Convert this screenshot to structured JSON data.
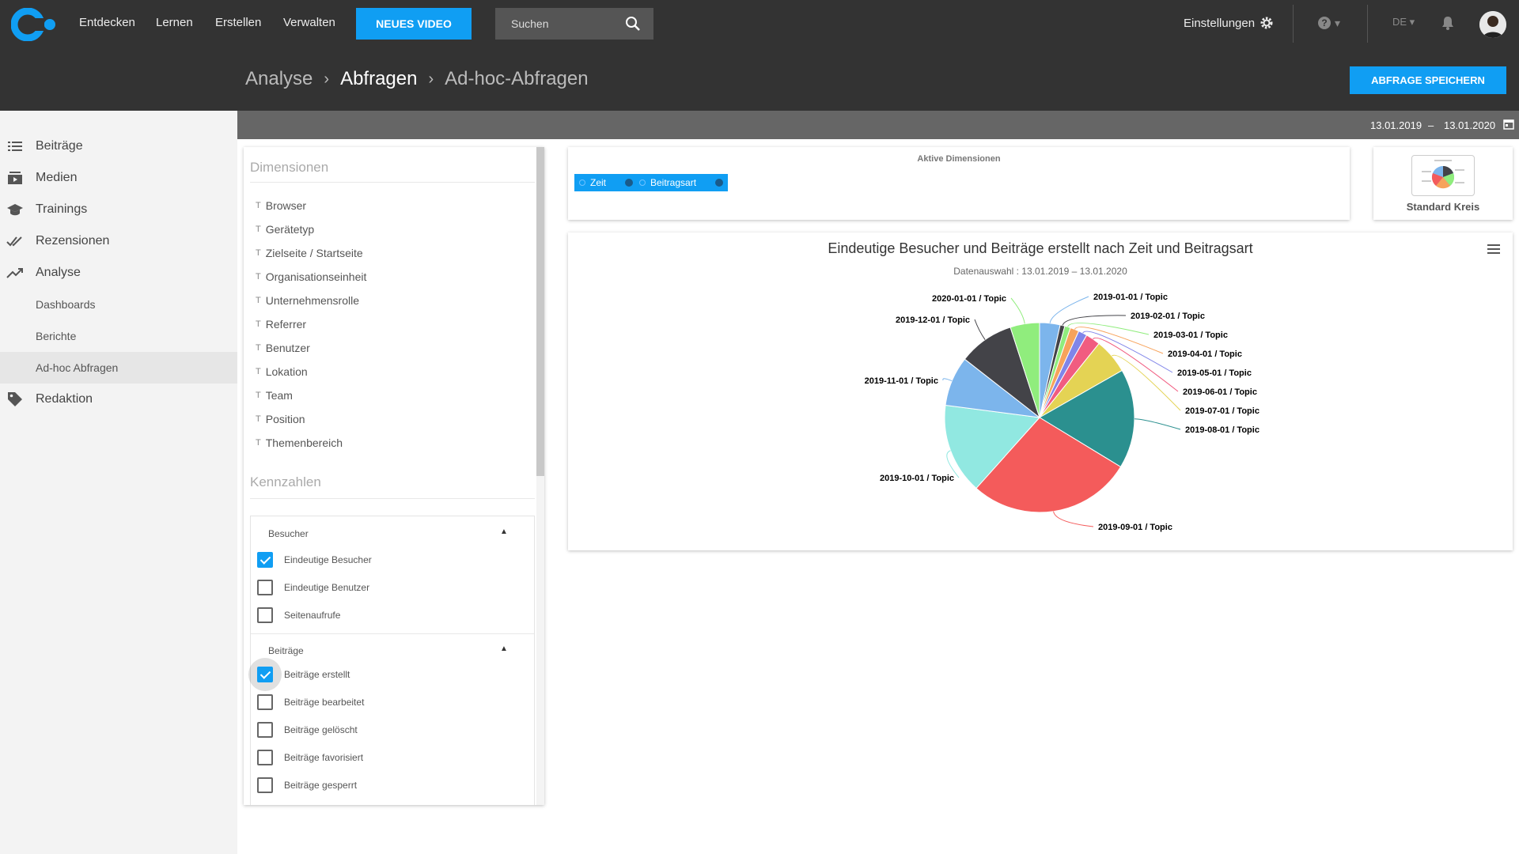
{
  "topbar": {
    "nav": [
      "Entdecken",
      "Lernen",
      "Erstellen",
      "Verwalten"
    ],
    "new_video": "NEUES VIDEO",
    "search_placeholder": "Suchen",
    "settings": "Einstellungen",
    "lang": "DE ▾"
  },
  "breadcrumb": [
    "Analyse",
    "Abfragen",
    "Ad-hoc-Abfragen"
  ],
  "save_button": "ABFRAGE SPEICHERN",
  "sidebar": {
    "items": [
      "Beiträge",
      "Medien",
      "Trainings",
      "Rezensionen",
      "Analyse"
    ],
    "sub": [
      "Dashboards",
      "Berichte",
      "Ad-hoc Abfragen"
    ],
    "last": "Redaktion"
  },
  "daterange": {
    "from": "13.01.2019",
    "sep": "–",
    "to": "13.01.2020"
  },
  "dimensions": {
    "title": "Dimensionen",
    "items": [
      "Browser",
      "Gerätetyp",
      "Zielseite / Startseite",
      "Organisationseinheit",
      "Unternehmensrolle",
      "Referrer",
      "Benutzer",
      "Lokation",
      "Team",
      "Position",
      "Themenbereich"
    ]
  },
  "kennzahlen": {
    "title": "Kennzahlen",
    "groups": [
      {
        "label": "Besucher",
        "items": [
          {
            "label": "Eindeutige Besucher",
            "checked": true
          },
          {
            "label": "Eindeutige Benutzer",
            "checked": false
          },
          {
            "label": "Seitenaufrufe",
            "checked": false
          }
        ]
      },
      {
        "label": "Beiträge",
        "items": [
          {
            "label": "Beiträge erstellt",
            "checked": true
          },
          {
            "label": "Beiträge bearbeitet",
            "checked": false
          },
          {
            "label": "Beiträge gelöscht",
            "checked": false
          },
          {
            "label": "Beiträge favorisiert",
            "checked": false
          },
          {
            "label": "Beiträge gesperrt",
            "checked": false
          }
        ]
      }
    ]
  },
  "active_dims": {
    "title": "Aktive Dimensionen",
    "chips": [
      "Zeit",
      "Beitragsart"
    ]
  },
  "chart_type": {
    "label": "Standard Kreis"
  },
  "chart_data": {
    "type": "pie",
    "title": "Eindeutige Besucher und Beiträge erstellt nach Zeit und Beitragsart",
    "subtitle": "Datenauswahl : 13.01.2019 – 13.01.2020",
    "slices": [
      {
        "label": "2019-01-01 / Topic",
        "value": 3.5,
        "color": "#7cb5ec"
      },
      {
        "label": "2019-02-01 / Topic",
        "value": 0.8,
        "color": "#434348"
      },
      {
        "label": "2019-03-01 / Topic",
        "value": 1.0,
        "color": "#90ed7d"
      },
      {
        "label": "2019-04-01 / Topic",
        "value": 1.5,
        "color": "#f7a35c"
      },
      {
        "label": "2019-05-01 / Topic",
        "value": 1.5,
        "color": "#8085e9"
      },
      {
        "label": "2019-06-01 / Topic",
        "value": 2.5,
        "color": "#f15c80"
      },
      {
        "label": "2019-07-01 / Topic",
        "value": 6.0,
        "color": "#e4d354"
      },
      {
        "label": "2019-08-01 / Topic",
        "value": 17.0,
        "color": "#2b908f"
      },
      {
        "label": "2019-09-01 / Topic",
        "value": 28.0,
        "color": "#f45b5b"
      },
      {
        "label": "2019-10-01 / Topic",
        "value": 15.5,
        "color": "#91e8e1"
      },
      {
        "label": "2019-11-01 / Topic",
        "value": 8.5,
        "color": "#7cb5ec"
      },
      {
        "label": "2019-12-01 / Topic",
        "value": 9.5,
        "color": "#434348"
      },
      {
        "label": "2020-01-01 / Topic",
        "value": 5.0,
        "color": "#90ed7d"
      }
    ]
  }
}
